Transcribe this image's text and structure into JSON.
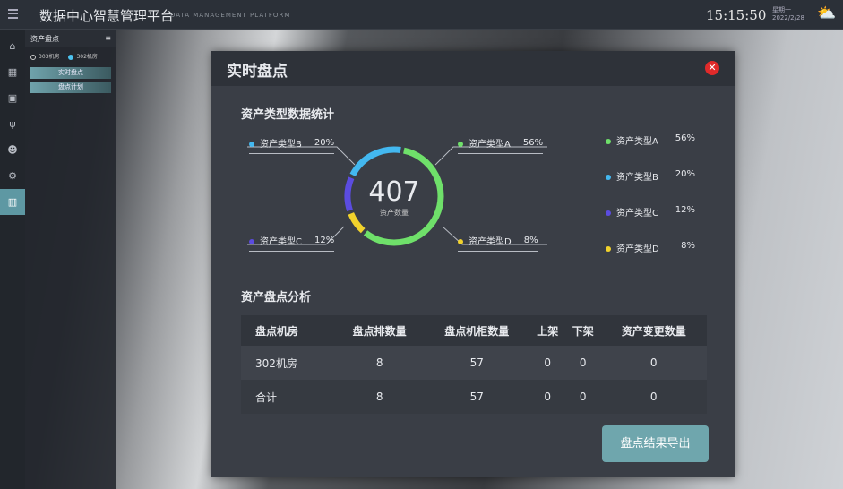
{
  "header": {
    "title": "数据中心智慧管理平台",
    "subtitle": "DATA MANAGEMENT PLATFORM",
    "time": "15:15:50",
    "weekday": "星期一",
    "date": "2022/2/28",
    "weather_icon": "partly-cloudy-icon"
  },
  "sidebar": {
    "icons": [
      "building-icon",
      "server-icon",
      "monitor-icon",
      "plug-icon",
      "robot-icon",
      "devices-icon",
      "inventory-icon"
    ],
    "active": 6
  },
  "panel": {
    "title": "资产盘点",
    "rooms": [
      {
        "label": "303机房",
        "selected": false
      },
      {
        "label": "302机房",
        "selected": true
      }
    ],
    "buttons": [
      "实时盘点",
      "盘点计划"
    ]
  },
  "modal": {
    "title": "实时盘点",
    "close_icon": "close-icon",
    "stats_title": "资产类型数据统计",
    "analysis_title": "资产盘点分析",
    "export_label": "盘点结果导出"
  },
  "chart_data": {
    "type": "pie",
    "center_value": "407",
    "center_label": "资产数量",
    "series": [
      {
        "name": "资产类型A",
        "value": "56%",
        "color": "#6fe06a"
      },
      {
        "name": "资产类型B",
        "value": "20%",
        "color": "#43b8f0"
      },
      {
        "name": "资产类型C",
        "value": "12%",
        "color": "#5b4ce0"
      },
      {
        "name": "资产类型D",
        "value": "8%",
        "color": "#f1d22c"
      }
    ]
  },
  "table": {
    "headers": [
      "盘点机房",
      "盘点排数量",
      "盘点机柜数量",
      "上架",
      "下架",
      "资产变更数量"
    ],
    "rows": [
      [
        "302机房",
        "8",
        "57",
        "0",
        "0",
        "0"
      ],
      [
        "合计",
        "8",
        "57",
        "0",
        "0",
        "0"
      ]
    ]
  }
}
